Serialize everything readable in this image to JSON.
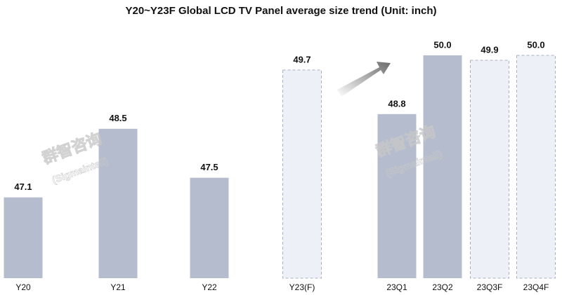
{
  "chart_data": {
    "type": "bar",
    "title": "Y20~Y23F Global LCD TV Panel average size trend (Unit: inch)",
    "categories": [
      "Y20",
      "Y21",
      "Y22",
      "Y23(F)",
      "23Q1",
      "23Q2",
      "23Q3F",
      "23Q4F"
    ],
    "values": [
      47.1,
      48.5,
      47.5,
      49.7,
      48.8,
      50.0,
      49.9,
      50.0
    ],
    "value_labels": [
      "47.1",
      "48.5",
      "47.5",
      "49.7",
      "48.8",
      "50.0",
      "49.9",
      "50.0"
    ],
    "dashed": [
      false,
      false,
      false,
      true,
      false,
      false,
      true,
      true
    ],
    "color": "#b4bccd",
    "forecast_color": "#eef0f7",
    "ylim": [
      45.45,
      50.5
    ],
    "watermark": [
      "群智咨询",
      "(Sigmaintell)"
    ]
  }
}
